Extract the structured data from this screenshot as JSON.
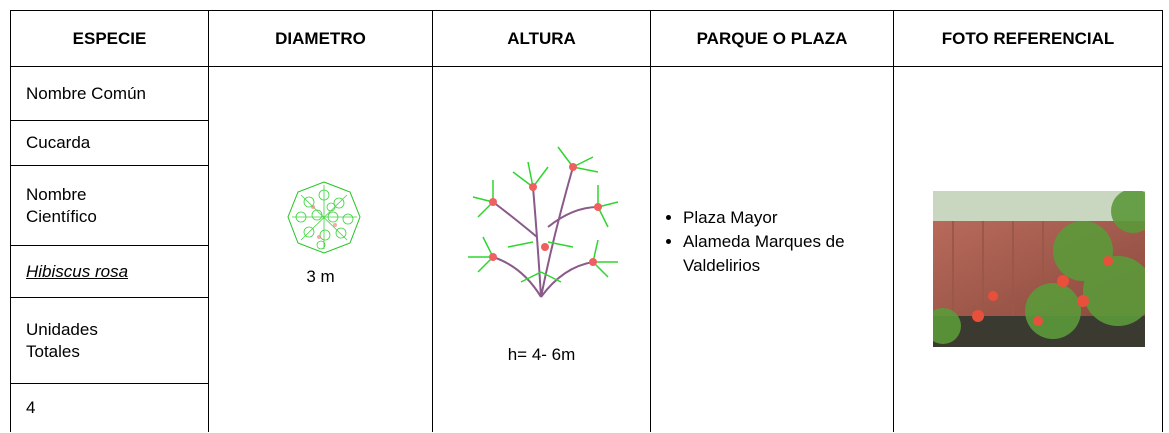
{
  "table": {
    "headers": [
      "ESPECIE",
      "DIAMETRO",
      "ALTURA",
      "PARQUE O PLAZA",
      "FOTO REFERENCIAL"
    ],
    "especie": [
      "Nombre Común",
      "Cucarda",
      "Nombre Científico",
      "Hibiscus rosa",
      "Unidades Totales",
      "4"
    ],
    "diametro": "3 m",
    "altura": "h= 4- 6m",
    "parques": [
      "Plaza Mayor",
      "Alameda Marques de Valdelirios"
    ]
  }
}
